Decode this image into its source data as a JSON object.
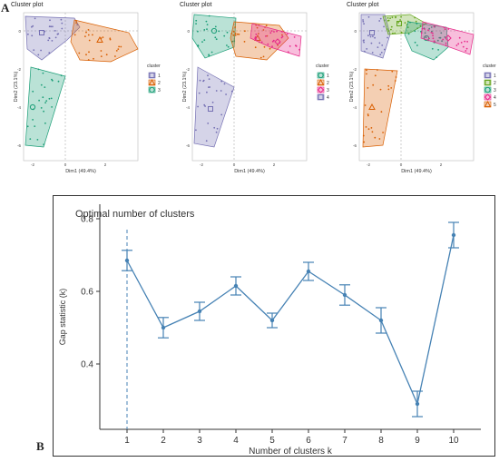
{
  "panels": {
    "a": "A",
    "b": "B"
  },
  "colors": {
    "c1": "#1b9e77",
    "c2": "#d95f02",
    "c3": "#7570b3",
    "c4": "#e7298a",
    "c5": "#66a61e",
    "gap": "#4682b4"
  },
  "mini_plots": [
    {
      "title": "Cluster plot",
      "xlabel": "Dim1 (49.4%)",
      "ylabel": "Dim2 (23.1%)",
      "legend_title": "cluster",
      "legend": [
        "1",
        "2",
        "3"
      ]
    },
    {
      "title": "Cluster plot",
      "xlabel": "Dim1 (49.4%)",
      "ylabel": "Dim2 (23.1%)",
      "legend_title": "cluster",
      "legend": [
        "1",
        "2",
        "3",
        "4"
      ]
    },
    {
      "title": "Cluster plot",
      "xlabel": "Dim1 (49.4%)",
      "ylabel": "Dim2 (23.1%)",
      "legend_title": "cluster",
      "legend": [
        "1",
        "2",
        "3",
        "4",
        "5"
      ]
    }
  ],
  "chart_data": {
    "type": "line",
    "title": "Optimal number of clusters",
    "xlabel": "Number of clusters k",
    "ylabel": "Gap statistic (k)",
    "x": [
      1,
      2,
      3,
      4,
      5,
      6,
      7,
      8,
      9,
      10
    ],
    "values": [
      0.685,
      0.5,
      0.545,
      0.615,
      0.52,
      0.655,
      0.59,
      0.52,
      0.29,
      0.755
    ],
    "errors": [
      0.028,
      0.028,
      0.025,
      0.025,
      0.02,
      0.025,
      0.028,
      0.035,
      0.035,
      0.035
    ],
    "optimal_k": 1,
    "ylim": [
      0.22,
      0.84
    ],
    "yticks": [
      0.4,
      0.6,
      0.8
    ],
    "xticks": [
      1,
      2,
      3,
      4,
      5,
      6,
      7,
      8,
      9,
      10
    ],
    "grid": false
  }
}
